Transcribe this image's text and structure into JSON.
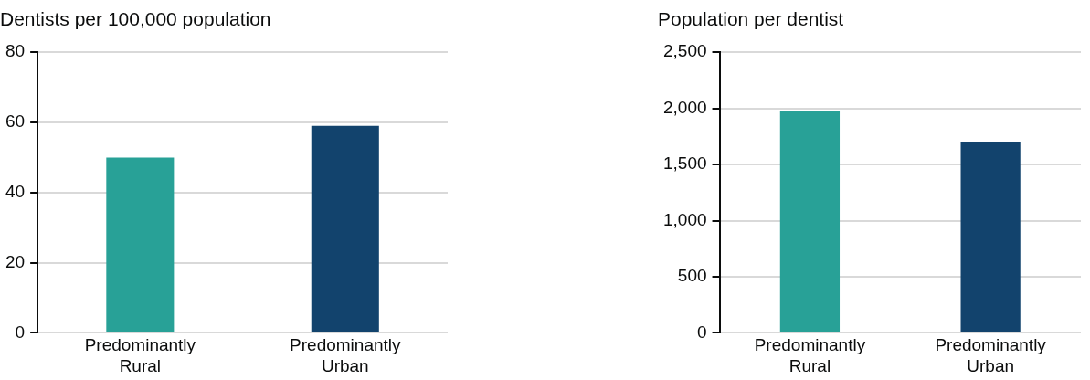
{
  "chart_data": [
    {
      "type": "bar",
      "title": "Dentists per 100,000 population",
      "categories": [
        "Predominantly Rural",
        "Predominantly Urban"
      ],
      "values": [
        50,
        59
      ],
      "colors": [
        "#28a197",
        "#12436d"
      ],
      "ylim": [
        0,
        80
      ],
      "yticks": [
        0,
        20,
        40,
        60,
        80
      ],
      "grid": "y",
      "legend": false
    },
    {
      "type": "bar",
      "title": "Population per dentist",
      "categories": [
        "Predominantly Rural",
        "Predominantly Urban"
      ],
      "values": [
        1980,
        1700
      ],
      "colors": [
        "#28a197",
        "#12436d"
      ],
      "ylim": [
        0,
        2500
      ],
      "yticks": [
        0,
        {
          "value": 500,
          "label": "500"
        },
        {
          "value": 1000,
          "label": "1,000"
        },
        {
          "value": 1500,
          "label": "1,500"
        },
        {
          "value": 2000,
          "label": "2,000"
        },
        {
          "value": 2500,
          "label": "2,500"
        }
      ],
      "grid": "y",
      "legend": false
    }
  ]
}
